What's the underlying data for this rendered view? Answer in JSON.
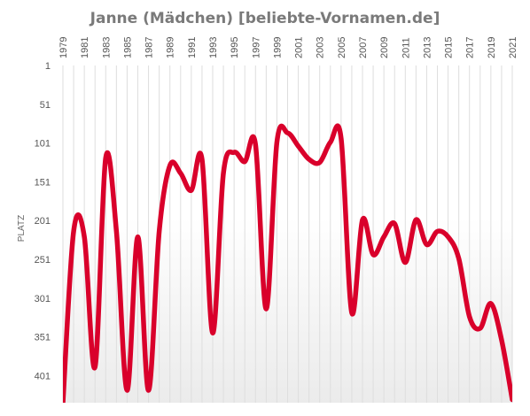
{
  "chart_data": {
    "type": "line",
    "title": "Janne (Mädchen) [beliebte-Vornamen.de]",
    "xlabel": "",
    "ylabel": "PLATZ",
    "x_ticks": [
      "1979",
      "1981",
      "1983",
      "1985",
      "1987",
      "1989",
      "1991",
      "1993",
      "1995",
      "1997",
      "1999",
      "2001",
      "2003",
      "2005",
      "2007",
      "2009",
      "2011",
      "2013",
      "2015",
      "2017",
      "2019",
      "2021"
    ],
    "y_ticks": [
      "1",
      "51",
      "101",
      "151",
      "201",
      "251",
      "301",
      "351",
      "401"
    ],
    "ylim": [
      1,
      436
    ],
    "y_inverted": true,
    "xlim": [
      1979,
      2021
    ],
    "grid": "vertical",
    "line_color": "#d9002b",
    "series": [
      {
        "name": "",
        "x": [
          1979,
          1980,
          1981,
          1982,
          1983,
          1984,
          1985,
          1986,
          1987,
          1988,
          1989,
          1990,
          1991,
          1992,
          1993,
          1994,
          1995,
          1996,
          1997,
          1998,
          1999,
          2000,
          2001,
          2002,
          2003,
          2004,
          2005,
          2006,
          2007,
          2008,
          2009,
          2010,
          2011,
          2012,
          2013,
          2014,
          2015,
          2016,
          2017,
          2018,
          2019,
          2020,
          2021
        ],
        "y": [
          436,
          215,
          222,
          390,
          120,
          215,
          420,
          222,
          420,
          215,
          130,
          140,
          162,
          122,
          346,
          140,
          113,
          125,
          103,
          315,
          100,
          88,
          105,
          122,
          126,
          100,
          95,
          320,
          200,
          245,
          222,
          205,
          255,
          200,
          232,
          215,
          222,
          250,
          325,
          340,
          308,
          355,
          432
        ]
      }
    ]
  }
}
